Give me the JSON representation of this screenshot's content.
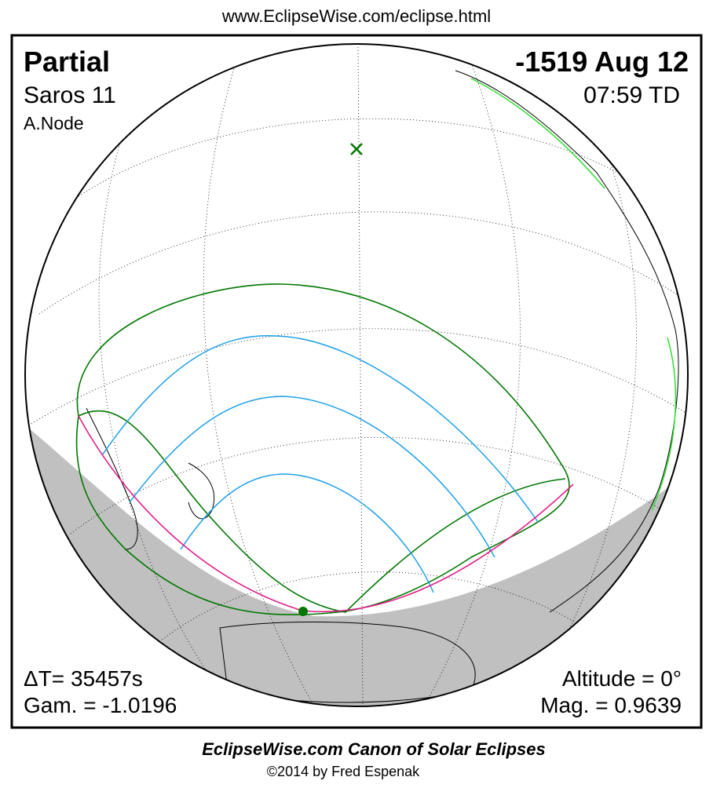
{
  "header": {
    "url": "www.EclipseWise.com/eclipse.html"
  },
  "eclipse": {
    "type": "Partial",
    "saros": "Saros  11",
    "node": "A.Node",
    "date": "-1519 Aug 12",
    "time": "07:59 TD",
    "delta_t": "ΔT=  35457s",
    "gamma": "Gam. = -1.0196",
    "altitude": "Altitude =  0°",
    "magnitude": "Mag. = 0.9639"
  },
  "footer": {
    "title": "EclipseWise.com Canon of Solar Eclipses",
    "credit": "©2014 by Fred Espenak"
  }
}
